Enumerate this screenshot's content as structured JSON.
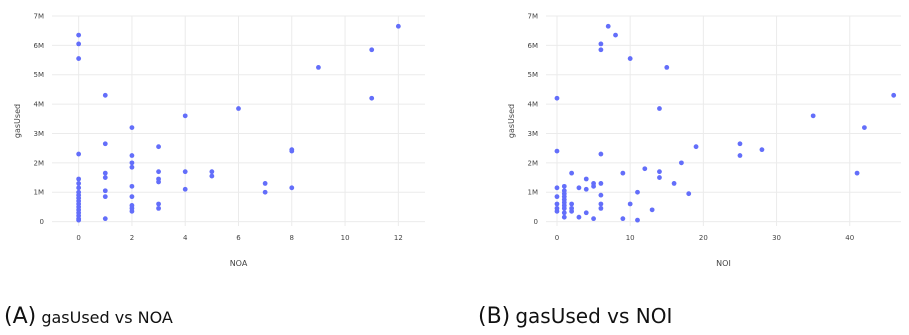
{
  "chart_data": [
    {
      "type": "scatter",
      "caption_label": "(A)",
      "caption_text": "gasUsed vs NOA",
      "xlabel": "NOA",
      "ylabel": "gasUsed",
      "xlim": [
        -1,
        13
      ],
      "ylim": [
        -0.15,
        7
      ],
      "xticks": [
        0,
        2,
        4,
        6,
        8,
        10,
        12
      ],
      "yticks": [
        0,
        1,
        2,
        3,
        4,
        5,
        6,
        7
      ],
      "ytick_labels": [
        "0",
        "1M",
        "2M",
        "3M",
        "4M",
        "5M",
        "6M",
        "7M"
      ],
      "grid": true,
      "marker_color": "#636efa",
      "y_unit": "millions",
      "points": [
        {
          "x": 0,
          "y": 6.35
        },
        {
          "x": 0,
          "y": 6.05
        },
        {
          "x": 0,
          "y": 5.55
        },
        {
          "x": 0,
          "y": 2.3
        },
        {
          "x": 0,
          "y": 1.45
        },
        {
          "x": 0,
          "y": 1.3
        },
        {
          "x": 0,
          "y": 1.15
        },
        {
          "x": 0,
          "y": 1.0
        },
        {
          "x": 0,
          "y": 0.9
        },
        {
          "x": 0,
          "y": 0.8
        },
        {
          "x": 0,
          "y": 0.7
        },
        {
          "x": 0,
          "y": 0.6
        },
        {
          "x": 0,
          "y": 0.5
        },
        {
          "x": 0,
          "y": 0.4
        },
        {
          "x": 0,
          "y": 0.3
        },
        {
          "x": 0,
          "y": 0.2
        },
        {
          "x": 0,
          "y": 0.1
        },
        {
          "x": 0,
          "y": 0.05
        },
        {
          "x": 1,
          "y": 4.3
        },
        {
          "x": 1,
          "y": 2.65
        },
        {
          "x": 1,
          "y": 1.65
        },
        {
          "x": 1,
          "y": 1.5
        },
        {
          "x": 1,
          "y": 1.05
        },
        {
          "x": 1,
          "y": 0.85
        },
        {
          "x": 1,
          "y": 0.1
        },
        {
          "x": 2,
          "y": 3.2
        },
        {
          "x": 2,
          "y": 2.25
        },
        {
          "x": 2,
          "y": 2.0
        },
        {
          "x": 2,
          "y": 1.85
        },
        {
          "x": 2,
          "y": 1.2
        },
        {
          "x": 2,
          "y": 0.85
        },
        {
          "x": 2,
          "y": 0.55
        },
        {
          "x": 2,
          "y": 0.45
        },
        {
          "x": 2,
          "y": 0.35
        },
        {
          "x": 3,
          "y": 2.55
        },
        {
          "x": 3,
          "y": 1.7
        },
        {
          "x": 3,
          "y": 1.45
        },
        {
          "x": 3,
          "y": 1.35
        },
        {
          "x": 3,
          "y": 0.6
        },
        {
          "x": 3,
          "y": 0.45
        },
        {
          "x": 4,
          "y": 3.6
        },
        {
          "x": 4,
          "y": 1.7
        },
        {
          "x": 4,
          "y": 1.1
        },
        {
          "x": 5,
          "y": 1.7
        },
        {
          "x": 5,
          "y": 1.55
        },
        {
          "x": 6,
          "y": 3.85
        },
        {
          "x": 7,
          "y": 1.3
        },
        {
          "x": 7,
          "y": 1.0
        },
        {
          "x": 8,
          "y": 2.45
        },
        {
          "x": 8,
          "y": 2.4
        },
        {
          "x": 8,
          "y": 1.15
        },
        {
          "x": 9,
          "y": 5.25
        },
        {
          "x": 11,
          "y": 5.85
        },
        {
          "x": 11,
          "y": 4.2
        },
        {
          "x": 12,
          "y": 6.65
        }
      ]
    },
    {
      "type": "scatter",
      "caption_label": "(B)",
      "caption_text": "gasUsed vs NOI",
      "xlabel": "NOI",
      "ylabel": "gasUsed",
      "xlim": [
        -1.5,
        47
      ],
      "ylim": [
        -0.15,
        7
      ],
      "xticks": [
        0,
        10,
        20,
        30,
        40
      ],
      "yticks": [
        0,
        1,
        2,
        3,
        4,
        5,
        6,
        7
      ],
      "ytick_labels": [
        "0",
        "1M",
        "2M",
        "3M",
        "4M",
        "5M",
        "6M",
        "7M"
      ],
      "grid": true,
      "marker_color": "#636efa",
      "y_unit": "millions",
      "points": [
        {
          "x": 0,
          "y": 4.2
        },
        {
          "x": 0,
          "y": 2.4
        },
        {
          "x": 0,
          "y": 1.15
        },
        {
          "x": 0,
          "y": 0.85
        },
        {
          "x": 0,
          "y": 0.6
        },
        {
          "x": 0,
          "y": 0.45
        },
        {
          "x": 0,
          "y": 0.35
        },
        {
          "x": 1,
          "y": 1.2
        },
        {
          "x": 1,
          "y": 1.05
        },
        {
          "x": 1,
          "y": 0.95
        },
        {
          "x": 1,
          "y": 0.85
        },
        {
          "x": 1,
          "y": 0.75
        },
        {
          "x": 1,
          "y": 0.65
        },
        {
          "x": 1,
          "y": 0.55
        },
        {
          "x": 1,
          "y": 0.45
        },
        {
          "x": 1,
          "y": 0.3
        },
        {
          "x": 1,
          "y": 0.15
        },
        {
          "x": 2,
          "y": 1.65
        },
        {
          "x": 2,
          "y": 0.6
        },
        {
          "x": 2,
          "y": 0.45
        },
        {
          "x": 2,
          "y": 0.35
        },
        {
          "x": 3,
          "y": 1.15
        },
        {
          "x": 3,
          "y": 0.15
        },
        {
          "x": 4,
          "y": 1.45
        },
        {
          "x": 4,
          "y": 1.1
        },
        {
          "x": 4,
          "y": 0.3
        },
        {
          "x": 5,
          "y": 1.3
        },
        {
          "x": 5,
          "y": 1.2
        },
        {
          "x": 5,
          "y": 0.1
        },
        {
          "x": 6,
          "y": 6.05
        },
        {
          "x": 6,
          "y": 5.85
        },
        {
          "x": 6,
          "y": 2.3
        },
        {
          "x": 6,
          "y": 1.3
        },
        {
          "x": 6,
          "y": 0.9
        },
        {
          "x": 6,
          "y": 0.6
        },
        {
          "x": 6,
          "y": 0.45
        },
        {
          "x": 7,
          "y": 6.65
        },
        {
          "x": 8,
          "y": 6.35
        },
        {
          "x": 9,
          "y": 1.65
        },
        {
          "x": 9,
          "y": 0.1
        },
        {
          "x": 10,
          "y": 5.55
        },
        {
          "x": 10,
          "y": 0.6
        },
        {
          "x": 11,
          "y": 1.0
        },
        {
          "x": 11,
          "y": 0.05
        },
        {
          "x": 12,
          "y": 1.8
        },
        {
          "x": 13,
          "y": 0.4
        },
        {
          "x": 14,
          "y": 3.85
        },
        {
          "x": 14,
          "y": 1.7
        },
        {
          "x": 14,
          "y": 1.5
        },
        {
          "x": 15,
          "y": 5.25
        },
        {
          "x": 16,
          "y": 1.3
        },
        {
          "x": 17,
          "y": 2.0
        },
        {
          "x": 18,
          "y": 0.95
        },
        {
          "x": 19,
          "y": 2.55
        },
        {
          "x": 25,
          "y": 2.65
        },
        {
          "x": 25,
          "y": 2.25
        },
        {
          "x": 28,
          "y": 2.45
        },
        {
          "x": 35,
          "y": 3.6
        },
        {
          "x": 41,
          "y": 1.65
        },
        {
          "x": 42,
          "y": 3.2
        },
        {
          "x": 46,
          "y": 4.3
        }
      ]
    }
  ]
}
